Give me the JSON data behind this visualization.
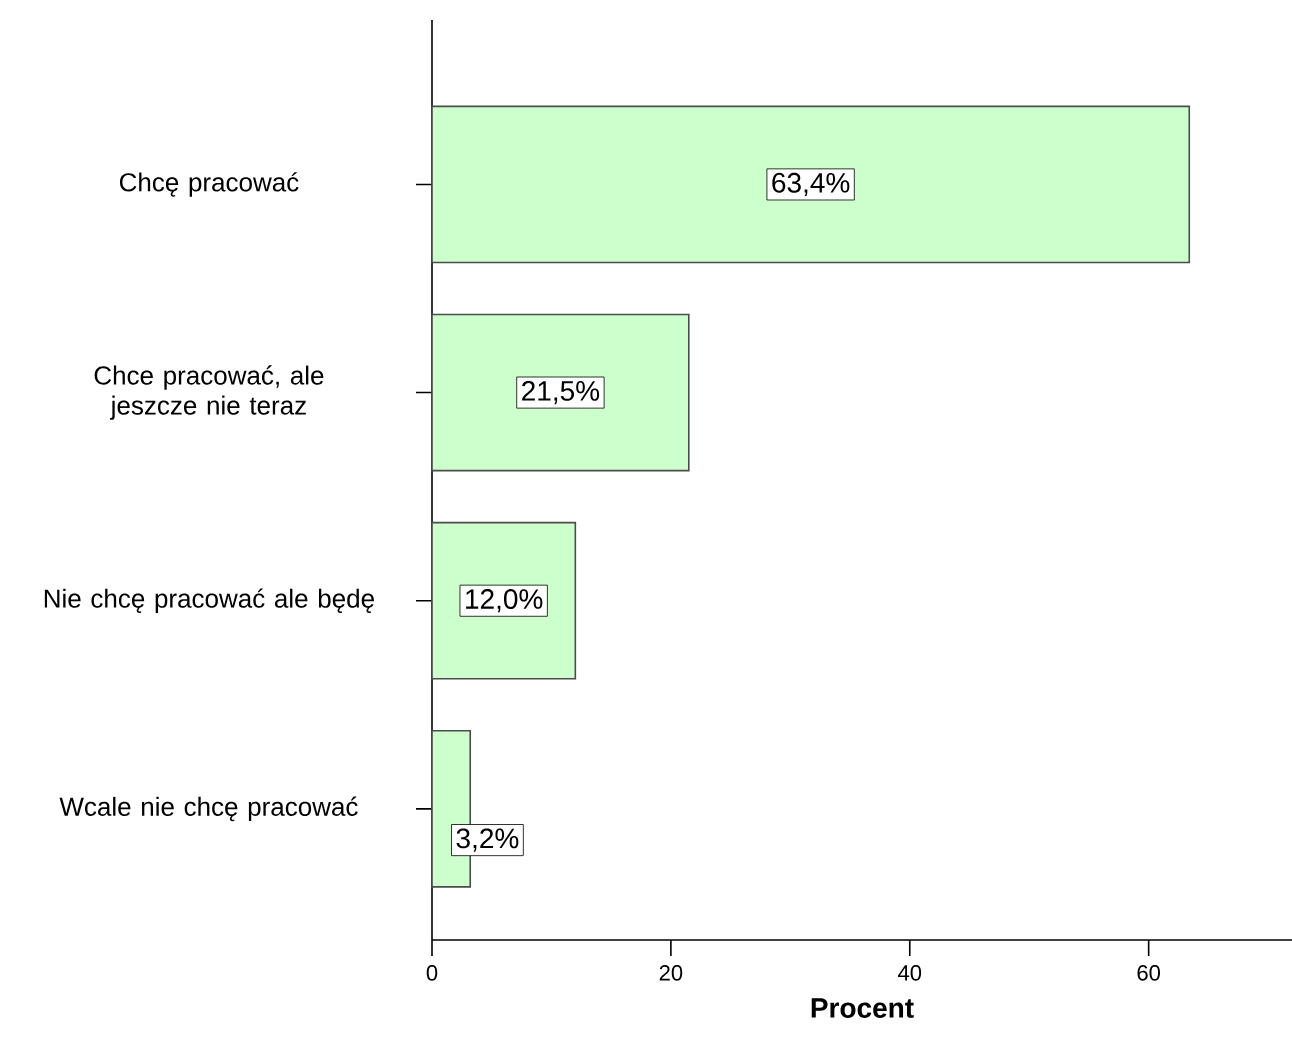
{
  "chart_data": {
    "type": "bar",
    "orientation": "horizontal",
    "categories": [
      "Chcę pracować",
      "Chce pracować, ale jeszcze nie teraz",
      "Nie chcę pracować ale będę",
      "Wcale nie chcę pracować"
    ],
    "values": [
      63.4,
      21.5,
      12.0,
      3.2
    ],
    "value_labels": [
      "63,4%",
      "21,5%",
      "12,0%",
      "3,2%"
    ],
    "color": "#ccffcc",
    "xlabel": "Procent",
    "xlim": [
      0,
      72
    ],
    "xticks": [
      0,
      20,
      40,
      60
    ]
  }
}
